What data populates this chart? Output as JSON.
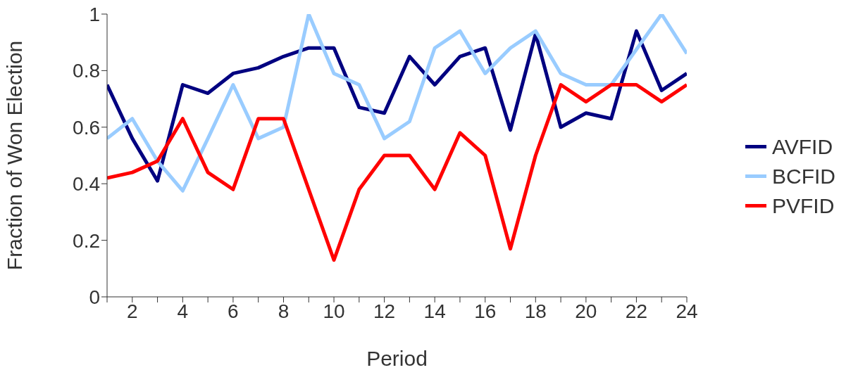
{
  "chart_data": {
    "type": "line",
    "xlabel": "Period",
    "ylabel": "Fraction of Won Election",
    "x": [
      1,
      2,
      3,
      4,
      5,
      6,
      7,
      8,
      9,
      10,
      11,
      12,
      13,
      14,
      15,
      16,
      17,
      18,
      19,
      20,
      21,
      22,
      23,
      24
    ],
    "series": [
      {
        "name": "AVFID",
        "color": "#000080",
        "values": [
          0.75,
          0.56,
          0.41,
          0.75,
          0.72,
          0.79,
          0.81,
          0.85,
          0.88,
          0.88,
          0.67,
          0.65,
          0.85,
          0.75,
          0.85,
          0.88,
          0.59,
          0.93,
          0.6,
          0.65,
          0.63,
          0.94,
          0.73,
          0.79
        ]
      },
      {
        "name": "BCFID",
        "color": "#99ccff",
        "values": [
          0.56,
          0.63,
          0.48,
          0.375,
          0.56,
          0.75,
          0.56,
          0.6,
          1,
          0.79,
          0.75,
          0.56,
          0.62,
          0.88,
          0.94,
          0.79,
          0.88,
          0.94,
          0.79,
          0.75,
          0.75,
          0.875,
          1,
          0.86
        ]
      },
      {
        "name": "PVFID",
        "color": "#ff0000",
        "values": [
          0.42,
          0.44,
          0.48,
          0.63,
          0.44,
          0.38,
          0.63,
          0.63,
          0.38,
          0.13,
          0.38,
          0.5,
          0.5,
          0.38,
          0.58,
          0.5,
          0.17,
          0.5,
          0.75,
          0.69,
          0.75,
          0.75,
          0.69,
          0.75
        ]
      }
    ],
    "xlim": [
      1,
      24
    ],
    "xticks": [
      {
        "value": 1,
        "label": null
      },
      2,
      {
        "value": 3,
        "label": null
      },
      4,
      {
        "value": 5,
        "label": null
      },
      6,
      {
        "value": 7,
        "label": null
      },
      8,
      {
        "value": 9,
        "label": null
      },
      10,
      {
        "value": 11,
        "label": null
      },
      12,
      {
        "value": 13,
        "label": null
      },
      14,
      {
        "value": 15,
        "label": null
      },
      16,
      {
        "value": 17,
        "label": null
      },
      18,
      {
        "value": 19,
        "label": null
      },
      20,
      {
        "value": 21,
        "label": null
      },
      22,
      {
        "value": 23,
        "label": null
      },
      24
    ],
    "ylim": [
      0,
      1
    ],
    "yticks": [
      0,
      0.2,
      0.4,
      0.6,
      0.8,
      1
    ],
    "grid": false,
    "legend": "right",
    "marker": "none",
    "line_style": "solid"
  }
}
